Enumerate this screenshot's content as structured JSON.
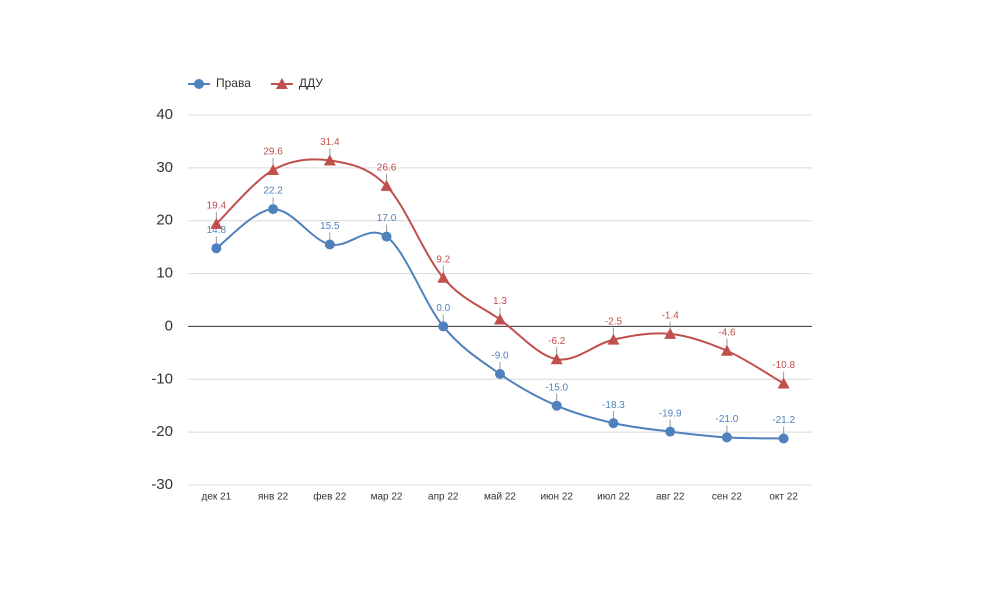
{
  "chart_data": {
    "type": "line",
    "categories": [
      "дек 21",
      "янв 22",
      "фев 22",
      "мар 22",
      "апр 22",
      "май 22",
      "июн 22",
      "июл 22",
      "авг 22",
      "сен 22",
      "окт 22"
    ],
    "series": [
      {
        "name": "Права",
        "color": "#4f81bd",
        "marker": "circle",
        "values": [
          14.8,
          22.2,
          15.5,
          17.0,
          0.0,
          -9.0,
          -15.0,
          -18.3,
          -19.9,
          -21.0,
          -21.2
        ],
        "value_labels": [
          "14.8",
          "22.2",
          "15.5",
          "17.0",
          "0.0",
          "-9.0",
          "-15.0",
          "-18.3",
          "-19.9",
          "-21.0",
          "-21.2"
        ]
      },
      {
        "name": "ДДУ",
        "color": "#c0504d",
        "marker": "triangle",
        "values": [
          19.4,
          29.6,
          31.4,
          26.6,
          9.2,
          1.3,
          -6.2,
          -2.5,
          -1.4,
          -4.6,
          -10.8
        ]
      }
    ],
    "ylim": [
      -30,
      40
    ],
    "yticks": [
      -30,
      -20,
      -10,
      0,
      10,
      20,
      30,
      40
    ],
    "grid": true,
    "smooth": true,
    "legend": "top-left"
  }
}
